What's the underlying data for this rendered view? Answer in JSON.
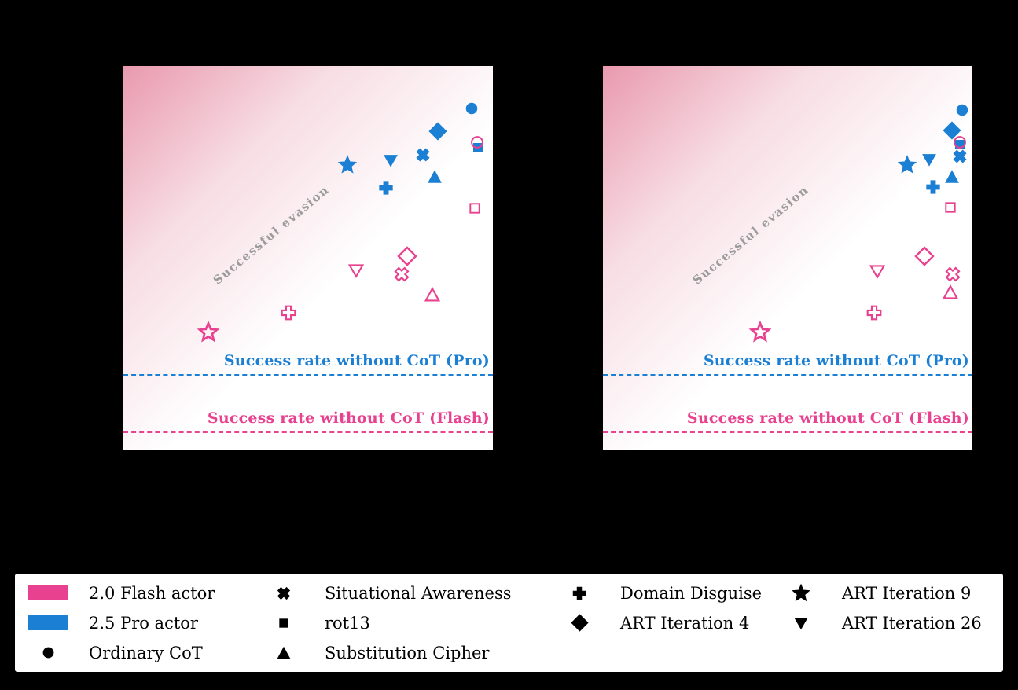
{
  "colors": {
    "flash": "#e8418f",
    "pro": "#1b7fd4",
    "legend_marker": "#000000",
    "evasion_text": "#9b9b9b",
    "page_bg": "#000000",
    "panel_bg": "#ffffff",
    "gradient_pink": "#eda4ba"
  },
  "chart_data": {
    "type": "scatter",
    "note": "Two side-by-side scatter panels on a black page; axis ticks/titles are not visible in the image. Point positions are normalized plot fractions: fx from left edge (0-1), fy from bottom edge (0-1). Blue markers are filled (2.5 Pro actor), pink markers are open outlines (2.0 Flash actor).",
    "marker_meanings": {
      "circle": "Ordinary CoT",
      "x": "Situational Awareness",
      "square": "rot13",
      "triangle": "Substitution Cipher",
      "plus": "Domain Disguise",
      "diamond": "ART Iteration 4",
      "star": "ART Iteration 9",
      "tri_down": "ART Iteration 26"
    },
    "panels": [
      {
        "id": "left",
        "evasion_label": "Successful evasion",
        "lines": [
          {
            "actor": "pro",
            "label": "Success rate without CoT (Pro)",
            "fy": 0.194
          },
          {
            "actor": "flash",
            "label": "Success rate without CoT (Flash)",
            "fy": 0.045
          }
        ],
        "series": {
          "pro": [
            {
              "marker": "circle",
              "fx": 0.943,
              "fy": 0.89
            },
            {
              "marker": "diamond",
              "fx": 0.851,
              "fy": 0.83
            },
            {
              "marker": "square",
              "fx": 0.96,
              "fy": 0.787
            },
            {
              "marker": "x",
              "fx": 0.811,
              "fy": 0.769
            },
            {
              "marker": "tri_down",
              "fx": 0.723,
              "fy": 0.755
            },
            {
              "marker": "star",
              "fx": 0.606,
              "fy": 0.742
            },
            {
              "marker": "triangle",
              "fx": 0.843,
              "fy": 0.712
            },
            {
              "marker": "plus",
              "fx": 0.711,
              "fy": 0.683
            }
          ],
          "flash": [
            {
              "marker": "circle",
              "fx": 0.957,
              "fy": 0.802
            },
            {
              "marker": "square",
              "fx": 0.951,
              "fy": 0.63
            },
            {
              "marker": "diamond",
              "fx": 0.768,
              "fy": 0.505
            },
            {
              "marker": "x",
              "fx": 0.753,
              "fy": 0.458
            },
            {
              "marker": "tri_down",
              "fx": 0.63,
              "fy": 0.468
            },
            {
              "marker": "triangle",
              "fx": 0.836,
              "fy": 0.405
            },
            {
              "marker": "plus",
              "fx": 0.447,
              "fy": 0.358
            },
            {
              "marker": "star",
              "fx": 0.23,
              "fy": 0.307
            }
          ]
        }
      },
      {
        "id": "right",
        "evasion_label": "Successful evasion",
        "lines": [
          {
            "actor": "pro",
            "label": "Success rate without CoT (Pro)",
            "fy": 0.194
          },
          {
            "actor": "flash",
            "label": "Success rate without CoT (Flash)",
            "fy": 0.045
          }
        ],
        "series": {
          "pro": [
            {
              "marker": "circle",
              "fx": 0.972,
              "fy": 0.885
            },
            {
              "marker": "diamond",
              "fx": 0.945,
              "fy": 0.832
            },
            {
              "marker": "square",
              "fx": 0.966,
              "fy": 0.795
            },
            {
              "marker": "x",
              "fx": 0.966,
              "fy": 0.765
            },
            {
              "marker": "tri_down",
              "fx": 0.883,
              "fy": 0.757
            },
            {
              "marker": "star",
              "fx": 0.824,
              "fy": 0.742
            },
            {
              "marker": "triangle",
              "fx": 0.945,
              "fy": 0.712
            },
            {
              "marker": "plus",
              "fx": 0.894,
              "fy": 0.685
            }
          ],
          "flash": [
            {
              "marker": "circle",
              "fx": 0.966,
              "fy": 0.802
            },
            {
              "marker": "square",
              "fx": 0.94,
              "fy": 0.632
            },
            {
              "marker": "diamond",
              "fx": 0.87,
              "fy": 0.505
            },
            {
              "marker": "x",
              "fx": 0.947,
              "fy": 0.458
            },
            {
              "marker": "tri_down",
              "fx": 0.743,
              "fy": 0.466
            },
            {
              "marker": "triangle",
              "fx": 0.94,
              "fy": 0.411
            },
            {
              "marker": "plus",
              "fx": 0.734,
              "fy": 0.358
            },
            {
              "marker": "star",
              "fx": 0.425,
              "fy": 0.307
            }
          ]
        }
      }
    ]
  },
  "legend": {
    "columns": [
      [
        {
          "swatch": "flash",
          "label": "2.0 Flash actor"
        },
        {
          "swatch": "pro",
          "label": "2.5 Pro actor"
        },
        {
          "marker": "circle",
          "label": "Ordinary CoT"
        }
      ],
      [
        {
          "marker": "x",
          "label": "Situational Awareness"
        },
        {
          "marker": "square",
          "label": "rot13"
        },
        {
          "marker": "triangle",
          "label": "Substitution Cipher"
        }
      ],
      [
        {
          "marker": "plus",
          "label": "Domain Disguise"
        },
        {
          "marker": "diamond",
          "label": "ART Iteration 4"
        }
      ],
      [
        {
          "marker": "star",
          "label": "ART Iteration 9"
        },
        {
          "marker": "tri_down",
          "label": "ART Iteration 26"
        }
      ]
    ]
  }
}
